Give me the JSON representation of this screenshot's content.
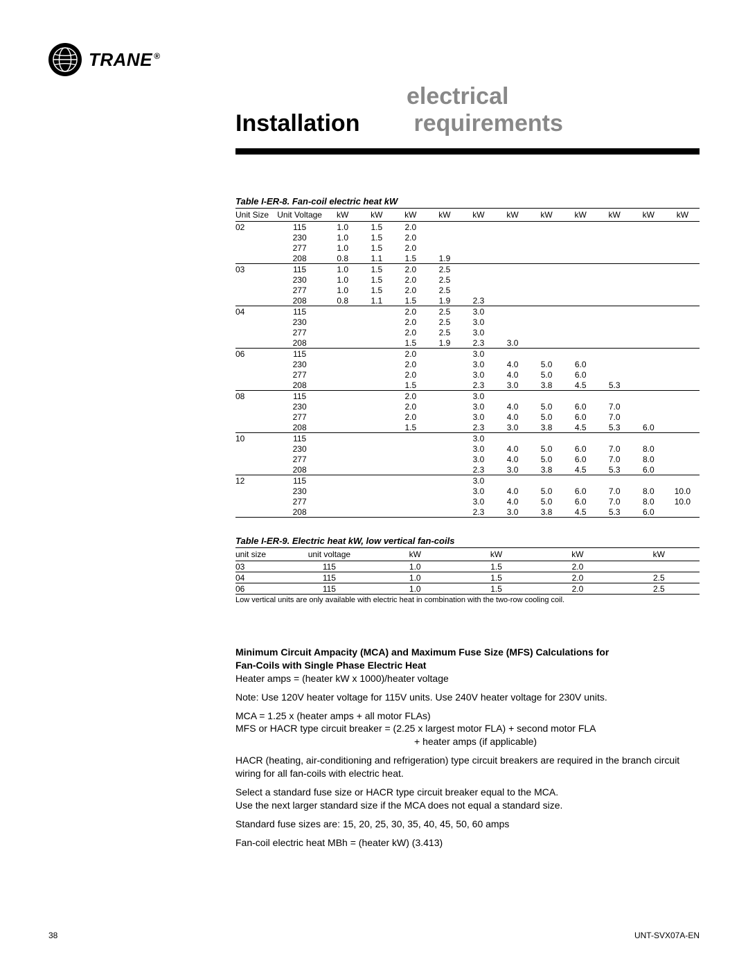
{
  "brand": {
    "name": "TRANE",
    "reg": "®"
  },
  "header": {
    "line1": "electrical",
    "installation": "Installation",
    "requirements": "requirements"
  },
  "table1": {
    "caption": "Table I-ER-8. Fan-coil electric heat kW",
    "columns": [
      "Unit Size",
      "Unit Voltage",
      "kW",
      "kW",
      "kW",
      "kW",
      "kW",
      "kW",
      "kW",
      "kW",
      "kW",
      "kW",
      "kW"
    ],
    "groups": [
      {
        "rows": [
          [
            "02",
            "115",
            "1.0",
            "1.5",
            "2.0",
            "",
            "",
            "",
            "",
            "",
            "",
            "",
            ""
          ],
          [
            "",
            "230",
            "1.0",
            "1.5",
            "2.0",
            "",
            "",
            "",
            "",
            "",
            "",
            "",
            ""
          ],
          [
            "",
            "277",
            "1.0",
            "1.5",
            "2.0",
            "",
            "",
            "",
            "",
            "",
            "",
            "",
            ""
          ],
          [
            "",
            "208",
            "0.8",
            "1.1",
            "1.5",
            "1.9",
            "",
            "",
            "",
            "",
            "",
            "",
            ""
          ]
        ]
      },
      {
        "rows": [
          [
            "03",
            "115",
            "1.0",
            "1.5",
            "2.0",
            "2.5",
            "",
            "",
            "",
            "",
            "",
            "",
            ""
          ],
          [
            "",
            "230",
            "1.0",
            "1.5",
            "2.0",
            "2.5",
            "",
            "",
            "",
            "",
            "",
            "",
            ""
          ],
          [
            "",
            "277",
            "1.0",
            "1.5",
            "2.0",
            "2.5",
            "",
            "",
            "",
            "",
            "",
            "",
            ""
          ],
          [
            "",
            "208",
            "0.8",
            "1.1",
            "1.5",
            "1.9",
            "2.3",
            "",
            "",
            "",
            "",
            "",
            ""
          ]
        ]
      },
      {
        "rows": [
          [
            "04",
            "115",
            "",
            "",
            "2.0",
            "2.5",
            "3.0",
            "",
            "",
            "",
            "",
            "",
            ""
          ],
          [
            "",
            "230",
            "",
            "",
            "2.0",
            "2.5",
            "3.0",
            "",
            "",
            "",
            "",
            "",
            ""
          ],
          [
            "",
            "277",
            "",
            "",
            "2.0",
            "2.5",
            "3.0",
            "",
            "",
            "",
            "",
            "",
            ""
          ],
          [
            "",
            "208",
            "",
            "",
            "1.5",
            "1.9",
            "2.3",
            "3.0",
            "",
            "",
            "",
            "",
            ""
          ]
        ]
      },
      {
        "rows": [
          [
            "06",
            "115",
            "",
            "",
            "2.0",
            "",
            "3.0",
            "",
            "",
            "",
            "",
            "",
            ""
          ],
          [
            "",
            "230",
            "",
            "",
            "2.0",
            "",
            "3.0",
            "4.0",
            "5.0",
            "6.0",
            "",
            "",
            ""
          ],
          [
            "",
            "277",
            "",
            "",
            "2.0",
            "",
            "3.0",
            "4.0",
            "5.0",
            "6.0",
            "",
            "",
            ""
          ],
          [
            "",
            "208",
            "",
            "",
            "1.5",
            "",
            "2.3",
            "3.0",
            "3.8",
            "4.5",
            "5.3",
            "",
            ""
          ]
        ]
      },
      {
        "rows": [
          [
            "08",
            "115",
            "",
            "",
            "2.0",
            "",
            "3.0",
            "",
            "",
            "",
            "",
            "",
            ""
          ],
          [
            "",
            "230",
            "",
            "",
            "2.0",
            "",
            "3.0",
            "4.0",
            "5.0",
            "6.0",
            "7.0",
            "",
            ""
          ],
          [
            "",
            "277",
            "",
            "",
            "2.0",
            "",
            "3.0",
            "4.0",
            "5.0",
            "6.0",
            "7.0",
            "",
            ""
          ],
          [
            "",
            "208",
            "",
            "",
            "1.5",
            "",
            "2.3",
            "3.0",
            "3.8",
            "4.5",
            "5.3",
            "6.0",
            ""
          ]
        ]
      },
      {
        "rows": [
          [
            "10",
            "115",
            "",
            "",
            "",
            "",
            "3.0",
            "",
            "",
            "",
            "",
            "",
            ""
          ],
          [
            "",
            "230",
            "",
            "",
            "",
            "",
            "3.0",
            "4.0",
            "5.0",
            "6.0",
            "7.0",
            "8.0",
            ""
          ],
          [
            "",
            "277",
            "",
            "",
            "",
            "",
            "3.0",
            "4.0",
            "5.0",
            "6.0",
            "7.0",
            "8.0",
            ""
          ],
          [
            "",
            "208",
            "",
            "",
            "",
            "",
            "2.3",
            "3.0",
            "3.8",
            "4.5",
            "5.3",
            "6.0",
            ""
          ]
        ]
      },
      {
        "rows": [
          [
            "12",
            "115",
            "",
            "",
            "",
            "",
            "3.0",
            "",
            "",
            "",
            "",
            "",
            ""
          ],
          [
            "",
            "230",
            "",
            "",
            "",
            "",
            "3.0",
            "4.0",
            "5.0",
            "6.0",
            "7.0",
            "8.0",
            "10.0"
          ],
          [
            "",
            "277",
            "",
            "",
            "",
            "",
            "3.0",
            "4.0",
            "5.0",
            "6.0",
            "7.0",
            "8.0",
            "10.0"
          ],
          [
            "",
            "208",
            "",
            "",
            "",
            "",
            "2.3",
            "3.0",
            "3.8",
            "4.5",
            "5.3",
            "6.0",
            ""
          ]
        ]
      }
    ]
  },
  "table2": {
    "caption": "Table I-ER-9. Electric heat kW,  low vertical fan-coils",
    "columns": [
      "unit size",
      "unit voltage",
      "kW",
      "kW",
      "kW",
      "kW"
    ],
    "rows": [
      [
        "03",
        "115",
        "1.0",
        "1.5",
        "2.0",
        ""
      ],
      [
        "04",
        "115",
        "1.0",
        "1.5",
        "2.0",
        "2.5"
      ],
      [
        "06",
        "115",
        "1.0",
        "1.5",
        "2.0",
        "2.5"
      ]
    ],
    "footnote": "Low vertical units are only available with electric heat in combination with the two-row cooling coil."
  },
  "body": {
    "h1a": "Minimum Circuit Ampacity (MCA) and Maximum Fuse Size (MFS) Calculations for",
    "h1b": "Fan-Coils with Single Phase Electric Heat",
    "p1": "Heater amps = (heater kW x 1000)/heater voltage",
    "p2": "Note: Use 120V heater voltage for 115V units. Use 240V heater voltage for 230V units.",
    "p3": "MCA = 1.25 x (heater amps + all motor FLAs)",
    "p4": "MFS or HACR type circuit breaker =  (2.25 x largest motor FLA) + second motor FLA",
    "p4b": "+ heater amps (if applicable)",
    "p5": "HACR (heating, air-conditioning and refrigeration) type circuit breakers are required in the branch circuit wiring for all fan-coils with electric heat.",
    "p6": "Select a standard fuse size or HACR type circuit breaker equal to the MCA.",
    "p6b": "Use the next larger standard size if the MCA does not equal a standard size.",
    "p7": "Standard fuse sizes are: 15, 20, 25, 30, 35, 40, 45, 50, 60 amps",
    "p8": "Fan-coil electric heat MBh = (heater kW) (3.413)"
  },
  "footer": {
    "page": "38",
    "doc": "UNT-SVX07A-EN"
  }
}
